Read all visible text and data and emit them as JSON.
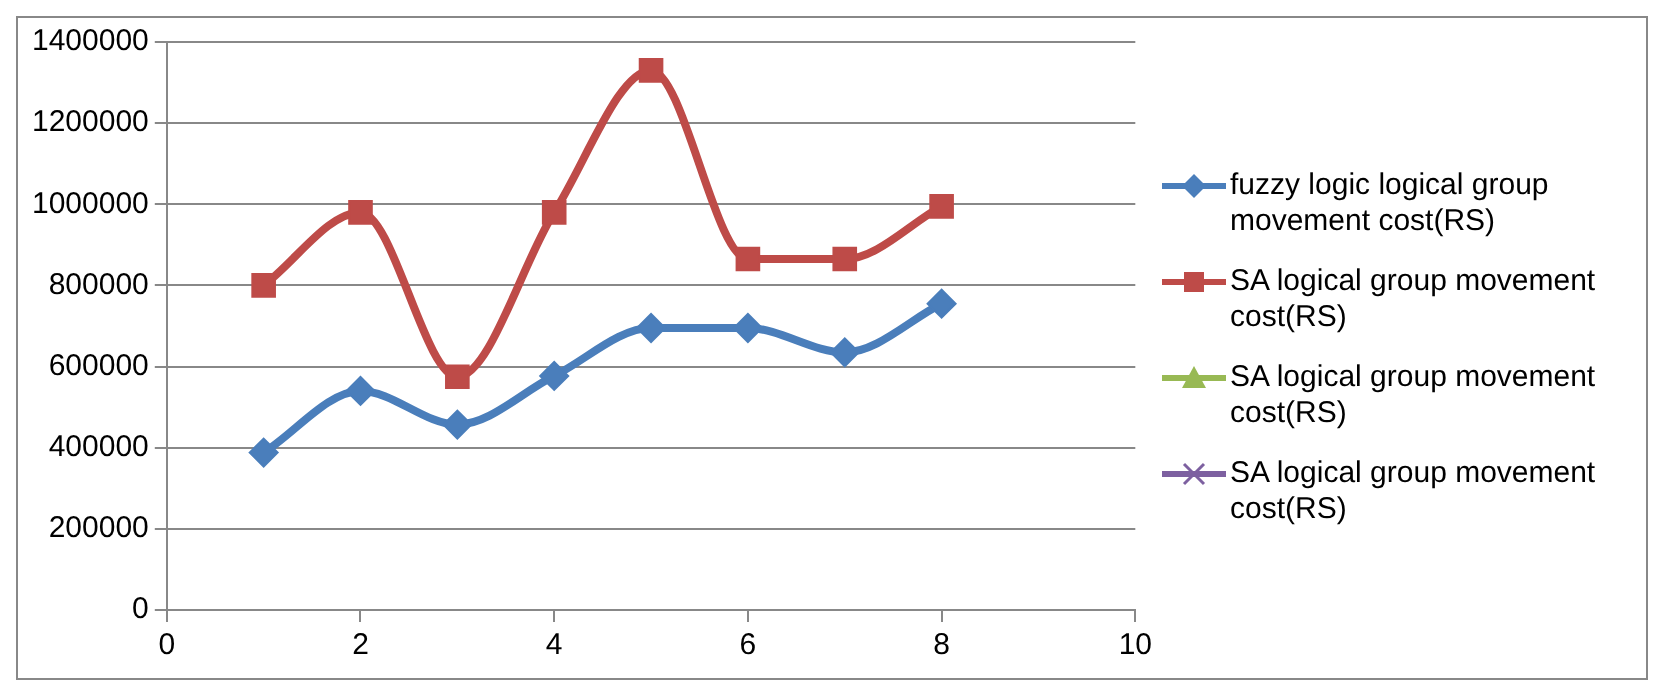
{
  "chart_data": {
    "type": "line",
    "x": [
      1,
      2,
      3,
      4,
      5,
      6,
      7,
      8
    ],
    "series": [
      {
        "name": "fuzzy logic logical group movement cost(RS)",
        "color": "#4a7ebb",
        "marker": "diamond",
        "values": [
          388000,
          540000,
          457000,
          577000,
          695000,
          695000,
          635000,
          755000
        ]
      },
      {
        "name": "SA logical group movement cost(RS)",
        "color": "#be4b48",
        "marker": "square",
        "values": [
          800000,
          980000,
          575000,
          980000,
          1330000,
          865000,
          865000,
          995000
        ]
      },
      {
        "name": "SA logical group movement cost(RS)",
        "color": "#98b954",
        "marker": "triangle",
        "values": [
          null,
          null,
          null,
          null,
          null,
          null,
          null,
          null
        ]
      },
      {
        "name": "SA logical group movement cost(RS)",
        "color": "#7d60a0",
        "marker": "cross",
        "values": [
          null,
          null,
          null,
          null,
          null,
          null,
          null,
          null
        ]
      }
    ],
    "xlim": [
      0,
      10
    ],
    "xticks": [
      0,
      2,
      4,
      6,
      8,
      10
    ],
    "ylim": [
      0,
      1400000
    ],
    "yticks": [
      0,
      200000,
      400000,
      600000,
      800000,
      1000000,
      1200000,
      1400000
    ],
    "grid": "y",
    "legend": "right",
    "line_style": "solid"
  }
}
